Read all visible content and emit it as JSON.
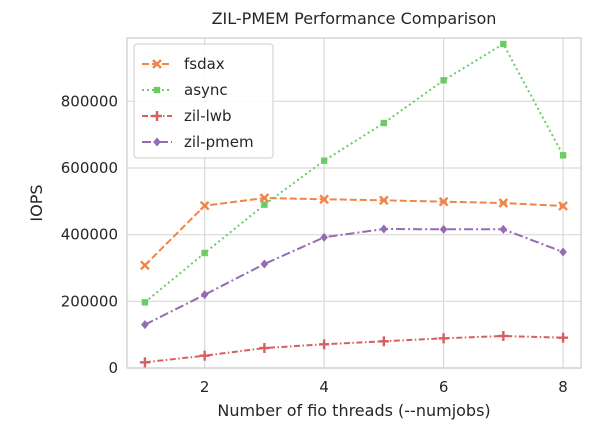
{
  "chart_data": {
    "type": "line",
    "title": "ZIL-PMEM Performance Comparison",
    "xlabel": "Number of fio threads (--numjobs)",
    "ylabel": "IOPS",
    "x": [
      1,
      2,
      3,
      4,
      5,
      6,
      7,
      8
    ],
    "xlim": [
      0.7,
      8.3
    ],
    "ylim": [
      0,
      990000
    ],
    "xticks": [
      2,
      4,
      6,
      8
    ],
    "yticks": [
      0,
      200000,
      400000,
      600000,
      800000
    ],
    "grid": true,
    "legend_position": "top-left",
    "series": [
      {
        "name": "fsdax",
        "color": "#ee854a",
        "dash": "dashed",
        "marker": "x",
        "values": [
          308000,
          487000,
          510000,
          506000,
          503000,
          499000,
          495000,
          486000
        ]
      },
      {
        "name": "async",
        "color": "#6acc64",
        "dash": "dotted",
        "marker": "square",
        "values": [
          197000,
          345000,
          490000,
          622000,
          735000,
          863000,
          972000,
          638000
        ]
      },
      {
        "name": "zil-lwb",
        "color": "#d65f5f",
        "dash": "dashdot",
        "marker": "plus",
        "values": [
          17000,
          37000,
          60000,
          71000,
          80000,
          89000,
          96000,
          91000
        ]
      },
      {
        "name": "zil-pmem",
        "color": "#956cb4",
        "dash": "dashdotline",
        "marker": "diamond",
        "values": [
          130000,
          220000,
          312000,
          392000,
          417000,
          416000,
          416000,
          348000
        ]
      }
    ]
  }
}
